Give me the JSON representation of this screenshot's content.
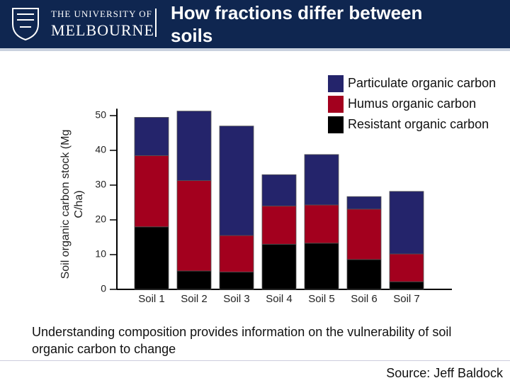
{
  "header": {
    "logo_line1": "THE UNIVERSITY OF",
    "logo_line2": "MELBOURNE",
    "title": "How fractions differ between soils"
  },
  "chart_data": {
    "type": "stacked-bar",
    "y_label": "Soil organic carbon stock (Mg C/ha)",
    "categories": [
      "Soil 1",
      "Soil 2",
      "Soil 3",
      "Soil 4",
      "Soil 5",
      "Soil 6",
      "Soil 7"
    ],
    "series": [
      {
        "name": "Particulate organic carbon",
        "color": "#24246b",
        "values": [
          11,
          20,
          31.5,
          9,
          14.5,
          3.6,
          18
        ]
      },
      {
        "name": "Humus organic carbon",
        "color": "#a3001e",
        "values": [
          20.5,
          26,
          10.5,
          11,
          11,
          14.5,
          8
        ]
      },
      {
        "name": "Resistant organic carbon",
        "color": "#000000",
        "values": [
          18,
          5.3,
          5,
          13,
          13.3,
          8.6,
          2.2
        ]
      }
    ],
    "ylim": [
      0,
      52
    ],
    "yticks": [
      0,
      10,
      20,
      30,
      40,
      50
    ],
    "legend": "upper-right"
  },
  "caption": "Understanding composition provides information on the vulnerability of soil organic carbon to change",
  "source": "Source: Jeff Baldock"
}
